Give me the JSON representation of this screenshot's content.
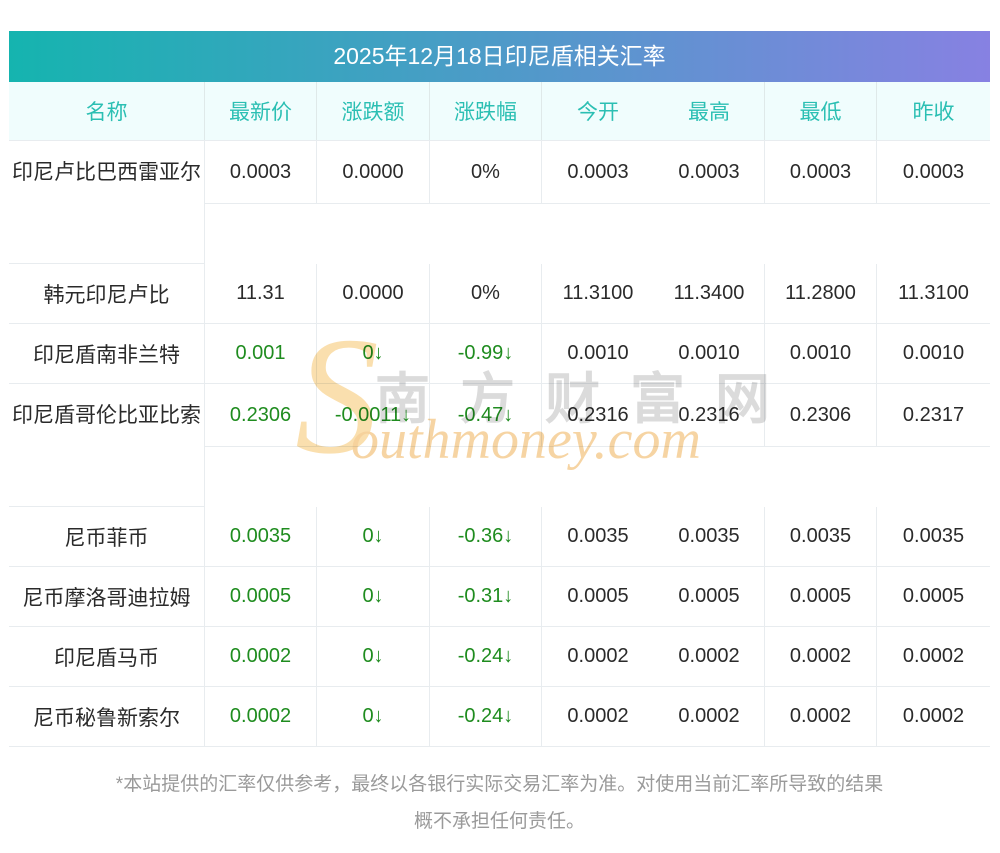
{
  "title": "2025年12月18日印尼盾相关汇率",
  "chart_data": {
    "type": "table",
    "title": "2025年12月18日印尼盾相关汇率",
    "columns": [
      "名称",
      "最新价",
      "涨跌额",
      "涨跌幅",
      "今开",
      "最高",
      "最低",
      "昨收"
    ],
    "rows": [
      {
        "name": "印尼卢比巴西雷亚尔",
        "latest": "0.0003",
        "change": "0.0000",
        "change_pct": "0%",
        "open": "0.0003",
        "high": "0.0003",
        "low": "0.0003",
        "prev_close": "0.0003",
        "trend": "flat"
      },
      {
        "name": "韩元印尼卢比",
        "latest": "11.31",
        "change": "0.0000",
        "change_pct": "0%",
        "open": "11.3100",
        "high": "11.3400",
        "low": "11.2800",
        "prev_close": "11.3100",
        "trend": "flat"
      },
      {
        "name": "印尼盾南非兰特",
        "latest": "0.001",
        "change": "0↓",
        "change_pct": "-0.99↓",
        "open": "0.0010",
        "high": "0.0010",
        "low": "0.0010",
        "prev_close": "0.0010",
        "trend": "down"
      },
      {
        "name": "印尼盾哥伦比亚比索",
        "latest": "0.2306",
        "change": "-0.0011↓",
        "change_pct": "-0.47↓",
        "open": "0.2316",
        "high": "0.2316",
        "low": "0.2306",
        "prev_close": "0.2317",
        "trend": "down"
      },
      {
        "name": "尼币菲币",
        "latest": "0.0035",
        "change": "0↓",
        "change_pct": "-0.36↓",
        "open": "0.0035",
        "high": "0.0035",
        "low": "0.0035",
        "prev_close": "0.0035",
        "trend": "down"
      },
      {
        "name": "尼币摩洛哥迪拉姆",
        "latest": "0.0005",
        "change": "0↓",
        "change_pct": "-0.31↓",
        "open": "0.0005",
        "high": "0.0005",
        "low": "0.0005",
        "prev_close": "0.0005",
        "trend": "down"
      },
      {
        "name": "印尼盾马币",
        "latest": "0.0002",
        "change": "0↓",
        "change_pct": "-0.24↓",
        "open": "0.0002",
        "high": "0.0002",
        "low": "0.0002",
        "prev_close": "0.0002",
        "trend": "down"
      },
      {
        "name": "尼币秘鲁新索尔",
        "latest": "0.0002",
        "change": "0↓",
        "change_pct": "-0.24↓",
        "open": "0.0002",
        "high": "0.0002",
        "low": "0.0002",
        "prev_close": "0.0002",
        "trend": "down"
      }
    ]
  },
  "watermark": {
    "cn": "南方财富网",
    "en_s": "S",
    "en_rest": "outhmoney.com"
  },
  "footer": {
    "line1": "*本站提供的汇率仅供参考，最终以各银行实际交易汇率为准。对使用当前汇率所导致的结果",
    "line2": "概不承担任何责任。"
  },
  "colors": {
    "gradient_start": "#15b4af",
    "gradient_end": "#8781e2",
    "header_text": "#2bbfb3",
    "header_bg": "#f0fdfd",
    "value_up_down_green": "#1f8c1f",
    "body_text": "#2a2a2a",
    "grid_line": "#e8ecef",
    "footer_text": "#9a9a9a",
    "watermark_orange": "#f6d09a",
    "watermark_gray": "#d5d5d5"
  }
}
